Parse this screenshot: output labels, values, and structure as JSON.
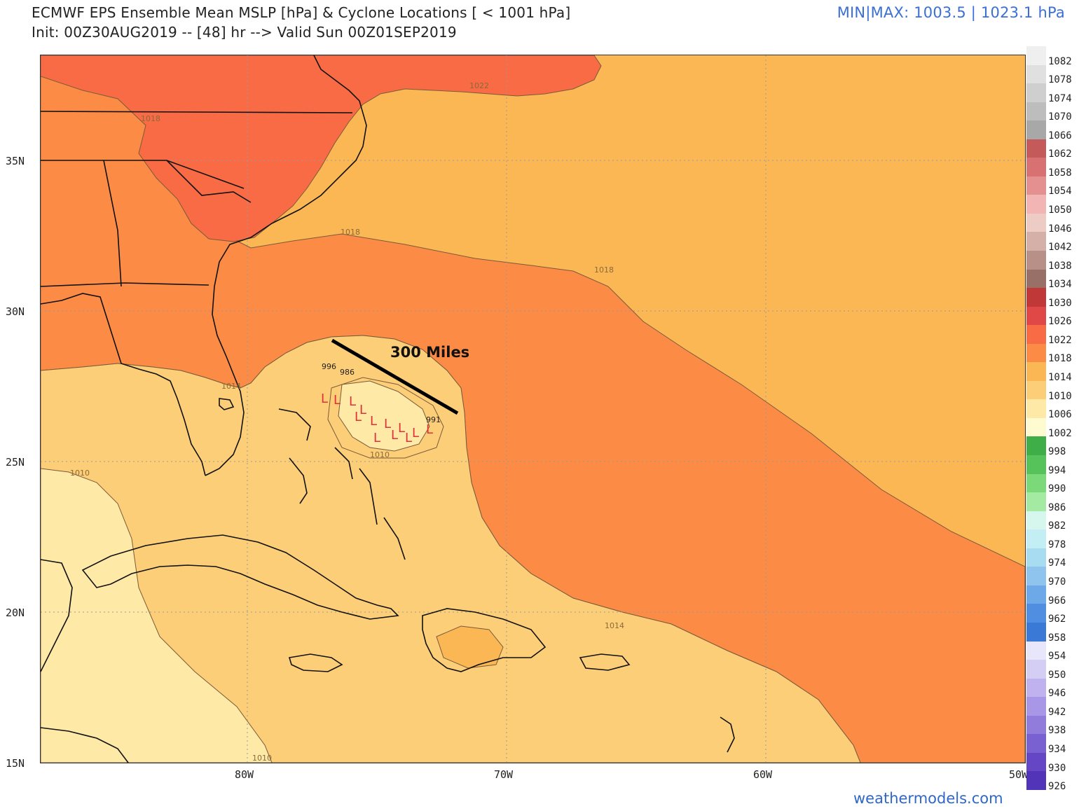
{
  "header": {
    "title_line1": "ECMWF EPS Ensemble Mean MSLP [hPa] & Cyclone Locations [ < 1001 hPa]",
    "title_line2": "Init: 00Z30AUG2019 -- [48] hr --> Valid Sun 00Z01SEP2019",
    "minmax": "MIN|MAX: 1003.5 | 1023.1 hPa"
  },
  "map": {
    "lat_labels": [
      "35N",
      "30N",
      "25N",
      "20N",
      "15N"
    ],
    "lon_labels": [
      "80W",
      "70W",
      "60W",
      "50W"
    ],
    "contour_labels": [
      "1022",
      "1018",
      "1018",
      "1018",
      "1014",
      "1010",
      "1010",
      "1014",
      "1010"
    ],
    "cyclone_pressures": [
      "996",
      "986",
      "991"
    ],
    "cyclone_marker": "L",
    "annotation": "300 Miles",
    "colors": {
      "c1022": "#f86b45",
      "c1018": "#fc8c45",
      "c1014": "#fcb755",
      "c1010": "#fdce78",
      "c1006": "#feeaa6",
      "coast": "#111111"
    }
  },
  "colorbar": {
    "labels": [
      "1082",
      "1078",
      "1074",
      "1070",
      "1066",
      "1062",
      "1058",
      "1054",
      "1050",
      "1046",
      "1042",
      "1038",
      "1034",
      "1030",
      "1026",
      "1022",
      "1018",
      "1014",
      "1010",
      "1006",
      "1002",
      "998",
      "994",
      "990",
      "986",
      "982",
      "978",
      "974",
      "970",
      "966",
      "962",
      "958",
      "954",
      "950",
      "946",
      "942",
      "938",
      "934",
      "930",
      "926"
    ],
    "colors": [
      "#efefef",
      "#e0e0e0",
      "#cfcfcf",
      "#bdbdbd",
      "#a8a8a8",
      "#c55a5a",
      "#d87272",
      "#e59090",
      "#f3b4b4",
      "#ecccc4",
      "#d4b0a8",
      "#b89088",
      "#987068",
      "#c03838",
      "#e04848",
      "#f86b45",
      "#fc8c45",
      "#fcb755",
      "#fdce78",
      "#feeaa6",
      "#fffbd0",
      "#3fae49",
      "#56c25a",
      "#7bd97a",
      "#a5eaa3",
      "#d6f7ee",
      "#c2eef4",
      "#a8dcf0",
      "#8ec4ee",
      "#6da8e8",
      "#4f8ee0",
      "#3a7ad6",
      "#e8e6fa",
      "#d4cdf4",
      "#bfb2ee",
      "#a897e6",
      "#917cdc",
      "#7a61d2",
      "#6547c6",
      "#5234b8"
    ]
  },
  "credit": "weathermodels.com"
}
